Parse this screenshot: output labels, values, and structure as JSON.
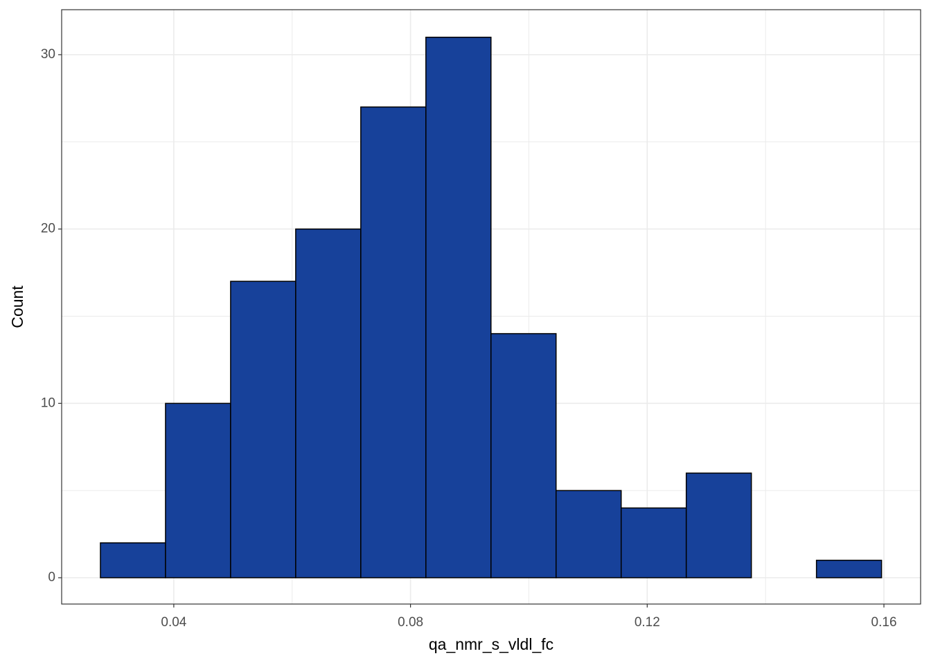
{
  "chart_data": {
    "type": "histogram",
    "x_label": "qa_nmr_s_vldl_fc",
    "y_label": "Count",
    "bins": [
      0.0276,
      0.0386,
      0.0496,
      0.0606,
      0.0716,
      0.0826,
      0.0936,
      0.1046,
      0.1156,
      0.1266,
      0.1376,
      0.1486,
      0.1596
    ],
    "counts": [
      2,
      10,
      17,
      20,
      27,
      31,
      14,
      5,
      4,
      6,
      0,
      1
    ],
    "color": "#17419a",
    "edge_color": "#000000",
    "xlim": [
      0.02105,
      0.1662
    ],
    "xticks": [
      0.04,
      0.08,
      0.12,
      0.16
    ],
    "ylim": [
      -1.51,
      32.58
    ],
    "yticks": [
      0,
      10,
      20,
      30
    ],
    "grid": true
  }
}
